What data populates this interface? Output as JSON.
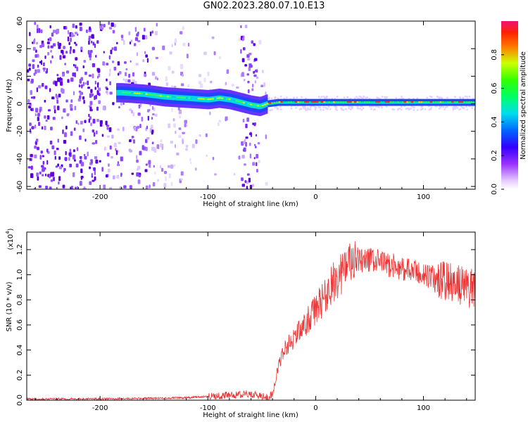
{
  "title": "GN02.2023.280.07.10.E13",
  "chart_data": [
    {
      "type": "heatmap",
      "xlabel": "Height of straight line (km)",
      "ylabel": "Frequency (Hz)",
      "xlim": [
        -268,
        148
      ],
      "ylim": [
        -62,
        60
      ],
      "xticks": [
        -200,
        -100,
        0,
        100
      ],
      "yticks": [
        60,
        40,
        20,
        0,
        -20,
        -40,
        -60
      ],
      "colorbar": {
        "label": "Normalized spectral amplitude",
        "range": [
          0,
          1
        ],
        "ticks": [
          "0.0",
          "0.2",
          "0.4",
          "0.6",
          "0.8"
        ]
      },
      "ridge": {
        "x": [
          -180,
          -160,
          -140,
          -120,
          -100,
          -90,
          -80,
          -70,
          -60,
          -52,
          -45,
          -35,
          -20,
          0,
          50,
          100,
          148
        ],
        "freq": [
          8,
          7,
          5,
          4,
          3,
          4,
          3,
          1,
          -1,
          -2,
          0,
          1,
          1,
          1,
          1,
          1,
          1
        ]
      }
    },
    {
      "type": "line",
      "xlabel": "Height of straight line (km)",
      "ylabel": "SNR (10 * v/v)",
      "yexp": "4",
      "xlim": [
        -268,
        148
      ],
      "ylim": [
        0,
        1.34
      ],
      "xticks": [
        -200,
        -100,
        0,
        100
      ],
      "yticks": [
        "0.0",
        "0.2",
        "0.4",
        "0.6",
        "0.8",
        "1.0",
        "1.2"
      ],
      "color": "#ee3333",
      "trend": {
        "x": [
          -268,
          -200,
          -150,
          -120,
          -100,
          -80,
          -60,
          -45,
          -40,
          -35,
          -30,
          -20,
          -10,
          0,
          10,
          20,
          30,
          40,
          50,
          60,
          80,
          100,
          120,
          148
        ],
        "y": [
          0.01,
          0.01,
          0.015,
          0.02,
          0.03,
          0.04,
          0.05,
          0.02,
          0.05,
          0.25,
          0.4,
          0.5,
          0.6,
          0.72,
          0.85,
          0.98,
          1.08,
          1.1,
          1.12,
          1.1,
          1.05,
          1.0,
          0.95,
          0.88
        ]
      }
    }
  ]
}
